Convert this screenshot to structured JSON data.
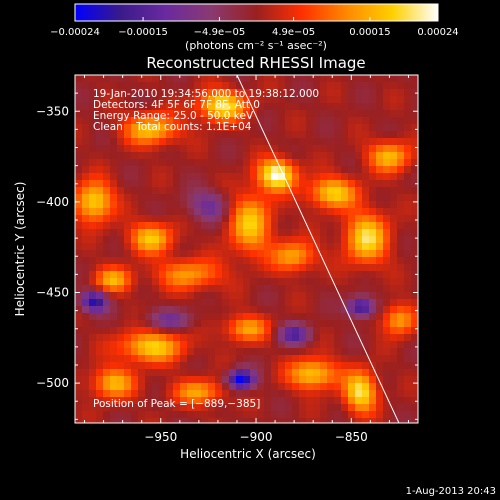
{
  "chart_data": {
    "type": "heatmap",
    "title": "Reconstructed RHESSI Image",
    "xlabel": "Heliocentric X (arcsec)",
    "ylabel": "Heliocentric Y (arcsec)",
    "x_ticks": [
      -950,
      -900,
      -850
    ],
    "y_ticks": [
      -350,
      -400,
      -450,
      -500
    ],
    "x_tick_labels": [
      "−950",
      "−900",
      "−850"
    ],
    "y_tick_labels": [
      "−350",
      "−400",
      "−450",
      "−500"
    ],
    "xlim": [
      -995,
      -815
    ],
    "ylim": [
      -522,
      -330
    ],
    "colorbar": {
      "range": [
        -0.00024,
        0.00024
      ],
      "tick_values": [
        -0.00024,
        -0.00015,
        -4.9e-05,
        4.9e-05,
        0.00015,
        0.00024
      ],
      "tick_labels": [
        "−0.00024",
        "−0.00015",
        "−4.9e−05",
        "4.9e−05",
        "0.00015",
        "0.00024"
      ],
      "unit_label": "(photons cm⁻² s⁻¹ asec⁻²)",
      "colors": [
        "#0000ff",
        "#3a1a8a",
        "#6a2aa0",
        "#8a3a70",
        "#9a2020",
        "#ff3000",
        "#ff8a00",
        "#ffd000",
        "#ffffff"
      ]
    },
    "annotations": [
      "19-Jan-2010 19:34:56.000 to 19:38:12.000",
      "Detectors: 4F 5F 6F 7F 8F, Att 0",
      "Energy Range: 25.0 - 50.0 keV",
      "Clean    Total counts: 1.1E+04"
    ],
    "peak": {
      "label": "Position of Peak = [−889,−385]",
      "x": -889,
      "y": -385
    },
    "limb_line": {
      "color": "#ffffff",
      "points": [
        {
          "x": -910,
          "y": -330
        },
        {
          "x": -825,
          "y": -522
        }
      ]
    },
    "blobs": [
      {
        "x": -889,
        "y": -385,
        "v": 1.0,
        "sx": 7,
        "sy": 6
      },
      {
        "x": -918,
        "y": -347,
        "v": 0.85,
        "sx": 9,
        "sy": 6
      },
      {
        "x": -955,
        "y": -360,
        "v": 0.7,
        "sx": 10,
        "sy": 6
      },
      {
        "x": -985,
        "y": -400,
        "v": 0.8,
        "sx": 7,
        "sy": 8
      },
      {
        "x": -955,
        "y": -420,
        "v": 0.7,
        "sx": 8,
        "sy": 6
      },
      {
        "x": -975,
        "y": -443,
        "v": 0.6,
        "sx": 7,
        "sy": 5
      },
      {
        "x": -935,
        "y": -440,
        "v": 0.55,
        "sx": 12,
        "sy": 6
      },
      {
        "x": -903,
        "y": -412,
        "v": 0.7,
        "sx": 8,
        "sy": 12
      },
      {
        "x": -880,
        "y": -430,
        "v": 0.6,
        "sx": 8,
        "sy": 6
      },
      {
        "x": -860,
        "y": -395,
        "v": 0.75,
        "sx": 9,
        "sy": 6
      },
      {
        "x": -842,
        "y": -420,
        "v": 0.8,
        "sx": 8,
        "sy": 10
      },
      {
        "x": -830,
        "y": -375,
        "v": 0.65,
        "sx": 8,
        "sy": 6
      },
      {
        "x": -955,
        "y": -480,
        "v": 0.75,
        "sx": 12,
        "sy": 6
      },
      {
        "x": -975,
        "y": -500,
        "v": 0.65,
        "sx": 8,
        "sy": 6
      },
      {
        "x": -905,
        "y": -470,
        "v": 0.6,
        "sx": 8,
        "sy": 5
      },
      {
        "x": -870,
        "y": -495,
        "v": 0.75,
        "sx": 9,
        "sy": 6
      },
      {
        "x": -845,
        "y": -505,
        "v": 0.85,
        "sx": 6,
        "sy": 8
      },
      {
        "x": -825,
        "y": -465,
        "v": 0.6,
        "sx": 6,
        "sy": 6
      },
      {
        "x": -930,
        "y": -505,
        "v": 0.55,
        "sx": 10,
        "sy": 5
      },
      {
        "x": -985,
        "y": -455,
        "v": -0.85,
        "sx": 5,
        "sy": 4
      },
      {
        "x": -908,
        "y": -498,
        "v": -1.0,
        "sx": 5,
        "sy": 4
      },
      {
        "x": -845,
        "y": -458,
        "v": -0.8,
        "sx": 5,
        "sy": 4
      },
      {
        "x": -880,
        "y": -473,
        "v": -0.6,
        "sx": 6,
        "sy": 4
      },
      {
        "x": -925,
        "y": -402,
        "v": -0.45,
        "sx": 8,
        "sy": 6
      },
      {
        "x": -945,
        "y": -465,
        "v": -0.4,
        "sx": 9,
        "sy": 4
      }
    ]
  },
  "footer": {
    "date": "1-Aug-2013 20:43"
  }
}
